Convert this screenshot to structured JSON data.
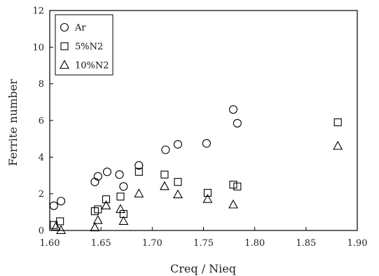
{
  "chart_data": {
    "type": "scatter",
    "title": "",
    "xlabel": "Creq / Nieq",
    "ylabel": "Ferrite number",
    "xlim": [
      1.6,
      1.9
    ],
    "ylim": [
      0,
      12
    ],
    "xticks": [
      1.6,
      1.65,
      1.7,
      1.75,
      1.8,
      1.85,
      1.9
    ],
    "xtick_labels": [
      "1.60",
      "1.65",
      "1.70",
      "1.75",
      "1.80",
      "1.85",
      "1.90"
    ],
    "yticks": [
      0,
      2,
      4,
      6,
      8,
      10,
      12
    ],
    "ytick_labels": [
      "0",
      "2",
      "4",
      "6",
      "8",
      "10",
      "12"
    ],
    "grid": false,
    "legend_position": "top-left",
    "series": [
      {
        "name": "Ar",
        "marker": "circle",
        "x": [
          1.604,
          1.611,
          1.644,
          1.647,
          1.656,
          1.668,
          1.672,
          1.687,
          1.713,
          1.725,
          1.753,
          1.779,
          1.783
        ],
        "y": [
          1.35,
          1.6,
          2.65,
          2.95,
          3.2,
          3.05,
          2.4,
          3.55,
          4.4,
          4.7,
          4.75,
          6.6,
          5.85
        ]
      },
      {
        "name": "5%N2",
        "marker": "square",
        "x": [
          1.604,
          1.61,
          1.644,
          1.647,
          1.655,
          1.669,
          1.672,
          1.687,
          1.712,
          1.725,
          1.754,
          1.779,
          1.783,
          1.881
        ],
        "y": [
          0.3,
          0.5,
          1.05,
          1.15,
          1.7,
          1.85,
          0.9,
          3.2,
          3.05,
          2.65,
          2.05,
          2.5,
          2.4,
          5.9
        ]
      },
      {
        "name": "10%N2",
        "marker": "triangle",
        "x": [
          1.606,
          1.611,
          1.644,
          1.647,
          1.655,
          1.669,
          1.672,
          1.687,
          1.712,
          1.725,
          1.754,
          1.779,
          1.881
        ],
        "y": [
          0.2,
          0.0,
          0.15,
          0.55,
          1.35,
          1.15,
          0.5,
          2.0,
          2.4,
          1.95,
          1.7,
          1.4,
          4.6
        ]
      }
    ]
  }
}
